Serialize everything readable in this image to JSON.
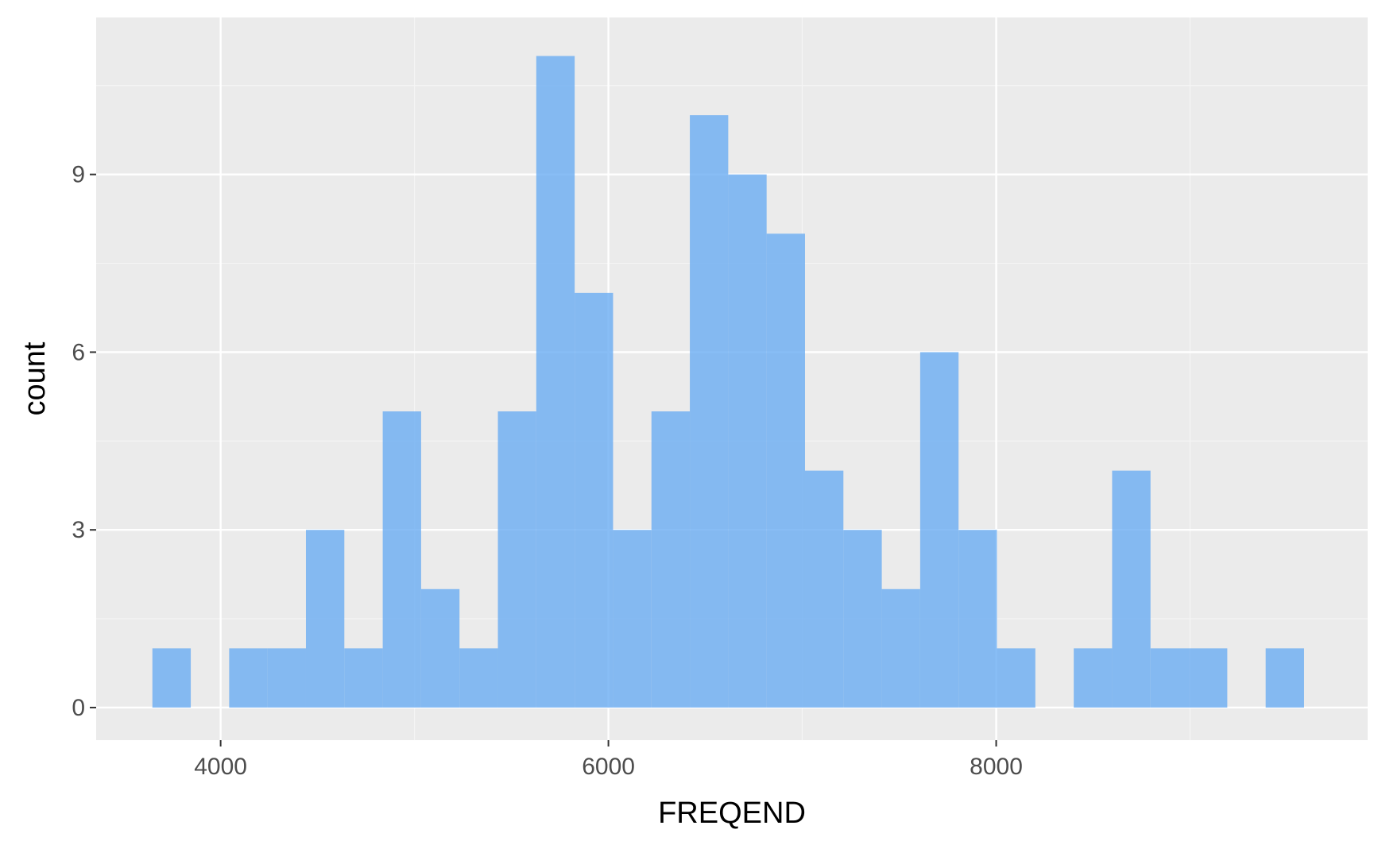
{
  "chart_data": {
    "type": "bar",
    "subtype": "histogram",
    "xlabel": "FREQEND",
    "ylabel": "count",
    "xlim": [
      3358,
      9916
    ],
    "ylim": [
      -0.55,
      11.65
    ],
    "x_ticks": [
      4000,
      6000,
      8000
    ],
    "x_minor_ticks": [
      5000,
      7000,
      9000
    ],
    "y_ticks": [
      0,
      3,
      6,
      9
    ],
    "y_minor_ticks": [
      1.5,
      4.5,
      7.5,
      10.5
    ],
    "grid": true,
    "legend": "none",
    "bins": [
      {
        "x0": 3648,
        "x1": 3846,
        "count": 1
      },
      {
        "x0": 3846,
        "x1": 4044,
        "count": 0
      },
      {
        "x0": 4044,
        "x1": 4242,
        "count": 1
      },
      {
        "x0": 4242,
        "x1": 4440,
        "count": 1
      },
      {
        "x0": 4440,
        "x1": 4638,
        "count": 3
      },
      {
        "x0": 4638,
        "x1": 4836,
        "count": 1
      },
      {
        "x0": 4836,
        "x1": 5034,
        "count": 5
      },
      {
        "x0": 5034,
        "x1": 5232,
        "count": 2
      },
      {
        "x0": 5232,
        "x1": 5430,
        "count": 1
      },
      {
        "x0": 5430,
        "x1": 5628,
        "count": 5
      },
      {
        "x0": 5628,
        "x1": 5826,
        "count": 11
      },
      {
        "x0": 5826,
        "x1": 6024,
        "count": 7
      },
      {
        "x0": 6024,
        "x1": 6222,
        "count": 3
      },
      {
        "x0": 6222,
        "x1": 6420,
        "count": 5
      },
      {
        "x0": 6420,
        "x1": 6618,
        "count": 10
      },
      {
        "x0": 6618,
        "x1": 6816,
        "count": 9
      },
      {
        "x0": 6816,
        "x1": 7014,
        "count": 8
      },
      {
        "x0": 7014,
        "x1": 7212,
        "count": 4
      },
      {
        "x0": 7212,
        "x1": 7410,
        "count": 3
      },
      {
        "x0": 7410,
        "x1": 7608,
        "count": 2
      },
      {
        "x0": 7608,
        "x1": 7806,
        "count": 6
      },
      {
        "x0": 7806,
        "x1": 8004,
        "count": 3
      },
      {
        "x0": 8004,
        "x1": 8202,
        "count": 1
      },
      {
        "x0": 8202,
        "x1": 8400,
        "count": 0
      },
      {
        "x0": 8400,
        "x1": 8598,
        "count": 1
      },
      {
        "x0": 8598,
        "x1": 8796,
        "count": 4
      },
      {
        "x0": 8796,
        "x1": 8994,
        "count": 1
      },
      {
        "x0": 8994,
        "x1": 9192,
        "count": 1
      },
      {
        "x0": 9192,
        "x1": 9390,
        "count": 0
      },
      {
        "x0": 9390,
        "x1": 9588,
        "count": 1
      }
    ],
    "colors": {
      "bar_fill": "#66aaf2",
      "bar_opacity": 0.78,
      "panel_background": "#ebebeb",
      "grid_major": "#ffffff",
      "grid_minor": "#f5f5f5",
      "tick_text": "#4d4d4d",
      "axis_title": "#000000",
      "tick_mark": "#333333"
    }
  }
}
